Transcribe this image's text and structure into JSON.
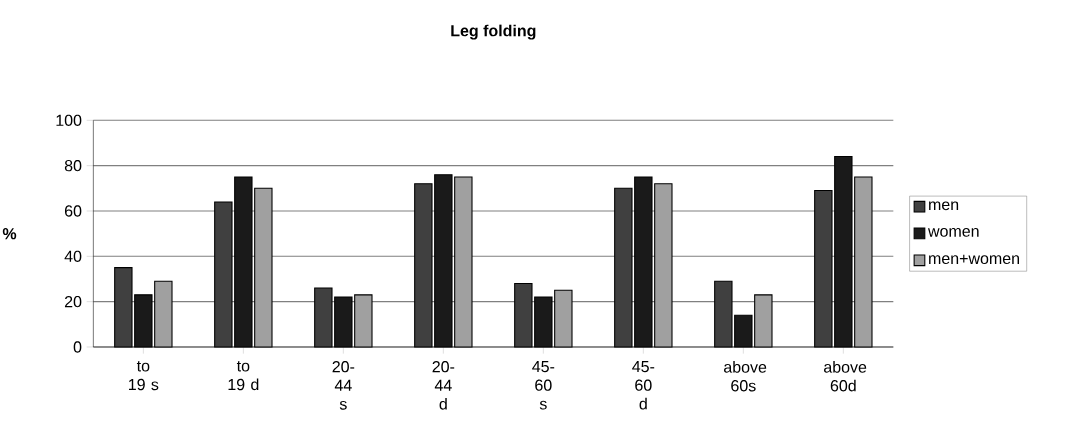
{
  "chart_data": {
    "type": "bar",
    "title": "Leg folding",
    "ylabel": "%",
    "categories": [
      "to 19 s",
      "to 19 d",
      "20-44 s",
      "20-44 d",
      "45-60 s",
      "45-60 d",
      "above 60s",
      "above 60d"
    ],
    "series": [
      {
        "name": "men",
        "color": "#404040",
        "values": [
          35,
          64,
          26,
          72,
          28,
          70,
          29,
          69
        ]
      },
      {
        "name": "women",
        "color": "#1a1a1a",
        "values": [
          23,
          75,
          22,
          76,
          22,
          75,
          14,
          84
        ]
      },
      {
        "name": "men+women",
        "color": "#a0a0a0",
        "values": [
          29,
          70,
          23,
          75,
          25,
          72,
          23,
          75
        ]
      }
    ],
    "ylim": [
      0,
      100
    ],
    "yticks": [
      0,
      20,
      40,
      60,
      80,
      100
    ],
    "grid": "y",
    "legend": "right"
  }
}
